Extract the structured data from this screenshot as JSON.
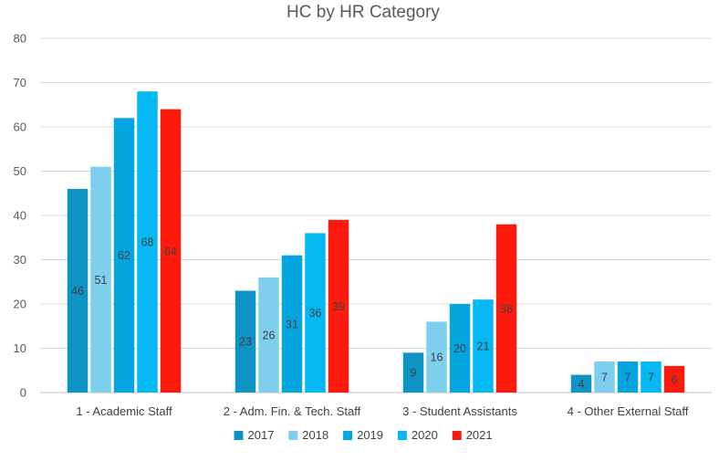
{
  "chart_data": {
    "type": "bar",
    "title": "HC by HR Category",
    "xlabel": "",
    "ylabel": "",
    "ylim": [
      0,
      80
    ],
    "yticks": [
      0,
      10,
      20,
      30,
      40,
      50,
      60,
      70,
      80
    ],
    "grid": true,
    "legend_position": "bottom",
    "categories": [
      "1 - Academic Staff",
      "2 - Adm. Fin. & Tech. Staff",
      "3 - Student Assistants",
      "4 - Other External Staff"
    ],
    "series": [
      {
        "name": "2017",
        "color": "#0e94c4",
        "values": [
          46,
          23,
          9,
          4
        ]
      },
      {
        "name": "2018",
        "color": "#7ecfee",
        "values": [
          51,
          26,
          16,
          7
        ]
      },
      {
        "name": "2019",
        "color": "#04a4de",
        "values": [
          62,
          31,
          20,
          7
        ]
      },
      {
        "name": "2020",
        "color": "#04b8f2",
        "values": [
          68,
          36,
          21,
          7
        ]
      },
      {
        "name": "2021",
        "color": "#ff1a0e",
        "values": [
          64,
          39,
          38,
          6
        ]
      }
    ],
    "data_labels": true
  }
}
